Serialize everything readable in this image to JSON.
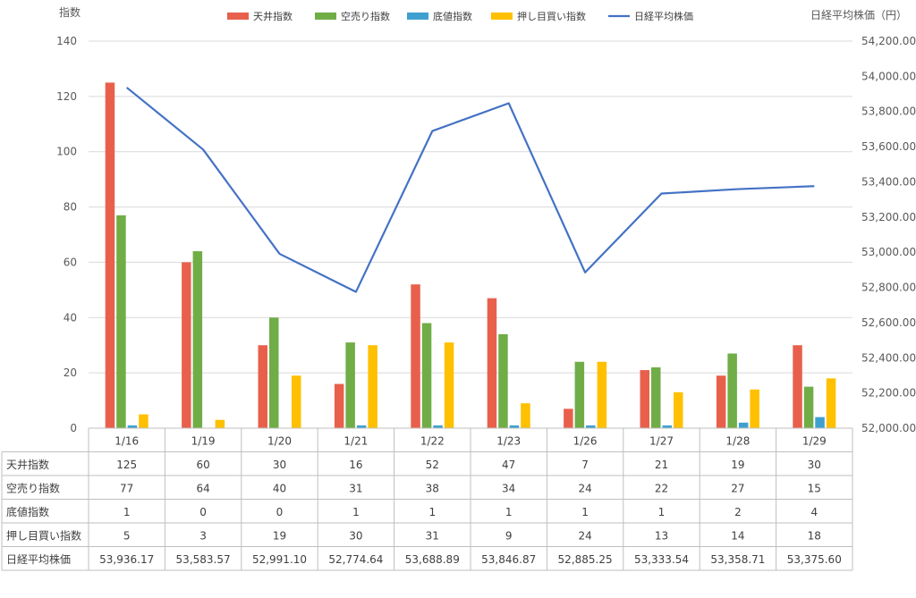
{
  "chart_data": {
    "type": "bar+line",
    "title": "",
    "ylabel_left": "指数",
    "ylabel_right": "日経平均株価（円）",
    "categories": [
      "1/16",
      "1/19",
      "1/20",
      "1/21",
      "1/22",
      "1/23",
      "1/26",
      "1/27",
      "1/28",
      "1/29"
    ],
    "ylim_left": [
      0,
      140
    ],
    "left_ticks": [
      "0",
      "20",
      "40",
      "60",
      "80",
      "100",
      "120",
      "140"
    ],
    "ylim_right": [
      52000,
      54200
    ],
    "right_ticks": [
      "52,000.00",
      "52,200.00",
      "52,400.00",
      "52,600.00",
      "52,800.00",
      "53,000.00",
      "53,200.00",
      "53,400.00",
      "53,600.00",
      "53,800.00",
      "54,000.00",
      "54,200.00"
    ],
    "grid": true,
    "legend_position": "top",
    "series": [
      {
        "name": "天井指数",
        "type": "bar",
        "axis": "left",
        "color": "#E8604C",
        "values": [
          125,
          60,
          30,
          16,
          52,
          47,
          7,
          21,
          19,
          30
        ]
      },
      {
        "name": "空売り指数",
        "type": "bar",
        "axis": "left",
        "color": "#70AD47",
        "values": [
          77,
          64,
          40,
          31,
          38,
          34,
          24,
          22,
          27,
          15
        ]
      },
      {
        "name": "底値指数",
        "type": "bar",
        "axis": "left",
        "color": "#3FA0D0",
        "values": [
          1,
          0,
          0,
          1,
          1,
          1,
          1,
          1,
          2,
          4
        ]
      },
      {
        "name": "押し目買い指数",
        "type": "bar",
        "axis": "left",
        "color": "#FFC000",
        "values": [
          5,
          3,
          19,
          30,
          31,
          9,
          24,
          13,
          14,
          18
        ]
      },
      {
        "name": "日経平均株価",
        "type": "line",
        "axis": "right",
        "color": "#4472C4",
        "values": [
          53936.17,
          53583.57,
          52991.1,
          52774.64,
          53688.89,
          53846.87,
          52885.25,
          53333.54,
          53358.71,
          53375.6
        ]
      }
    ],
    "table": {
      "rows": [
        {
          "label": "天井指数",
          "cells": [
            "125",
            "60",
            "30",
            "16",
            "52",
            "47",
            "7",
            "21",
            "19",
            "30"
          ]
        },
        {
          "label": "空売り指数",
          "cells": [
            "77",
            "64",
            "40",
            "31",
            "38",
            "34",
            "24",
            "22",
            "27",
            "15"
          ]
        },
        {
          "label": "底値指数",
          "cells": [
            "1",
            "0",
            "0",
            "1",
            "1",
            "1",
            "1",
            "1",
            "2",
            "4"
          ]
        },
        {
          "label": "押し目買い指数",
          "cells": [
            "5",
            "3",
            "19",
            "30",
            "31",
            "9",
            "24",
            "13",
            "14",
            "18"
          ]
        },
        {
          "label": "日経平均株価",
          "cells": [
            "53,936.17",
            "53,583.57",
            "52,991.10",
            "52,774.64",
            "53,688.89",
            "53,846.87",
            "52,885.25",
            "53,333.54",
            "53,358.71",
            "53,375.60"
          ]
        }
      ]
    }
  }
}
